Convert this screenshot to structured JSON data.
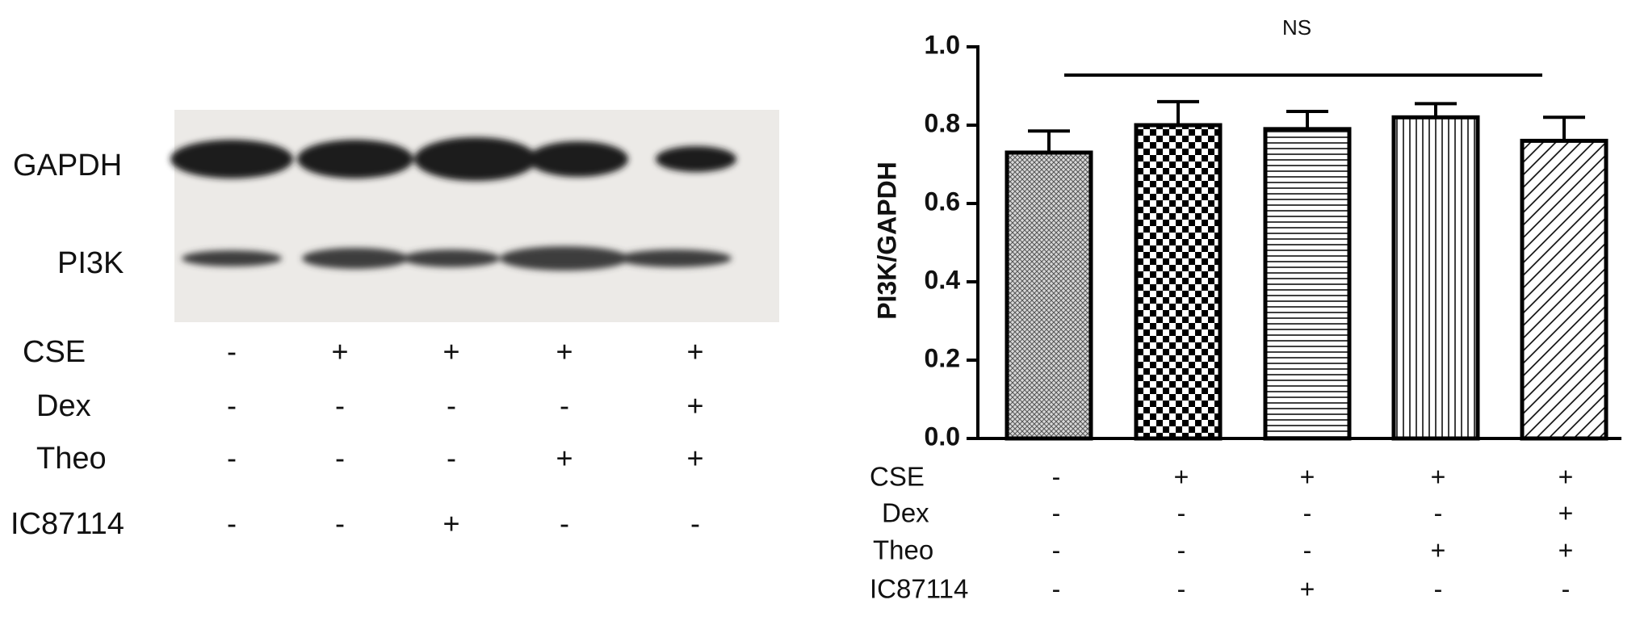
{
  "chart_data": {
    "type": "bar",
    "y_label": "PI3K/GAPDH",
    "annotation": "NS",
    "categories": [
      null,
      null,
      null,
      null,
      null
    ],
    "values": [
      0.73,
      0.8,
      0.79,
      0.82,
      0.76
    ],
    "errors": [
      0.055,
      0.06,
      0.045,
      0.035,
      0.06
    ],
    "color": "#000000",
    "ylim": [
      0,
      1.0
    ],
    "yticks": [
      {
        "value": 0,
        "label": "0.0"
      },
      {
        "value": 0.2,
        "label": "0.2"
      },
      {
        "value": 0.4,
        "label": "0.4"
      },
      {
        "value": 0.6,
        "label": "0.6"
      },
      {
        "value": 0.8,
        "label": "0.8"
      },
      {
        "value": 1.0,
        "label": "1.0"
      }
    ]
  },
  "blot": {
    "bands": [
      "GAPDH",
      "PI3K"
    ]
  },
  "conditions": [
    {
      "label": "CSE",
      "signs": [
        "-",
        "+",
        "+",
        "+",
        "+"
      ]
    },
    {
      "label": "Dex",
      "signs": [
        "-",
        "-",
        "-",
        "-",
        "+"
      ]
    },
    {
      "label": "Theo",
      "signs": [
        "-",
        "-",
        "-",
        "+",
        "+"
      ]
    },
    {
      "label": "IC87114",
      "signs": [
        "-",
        "-",
        "+",
        "-",
        "-"
      ]
    }
  ]
}
